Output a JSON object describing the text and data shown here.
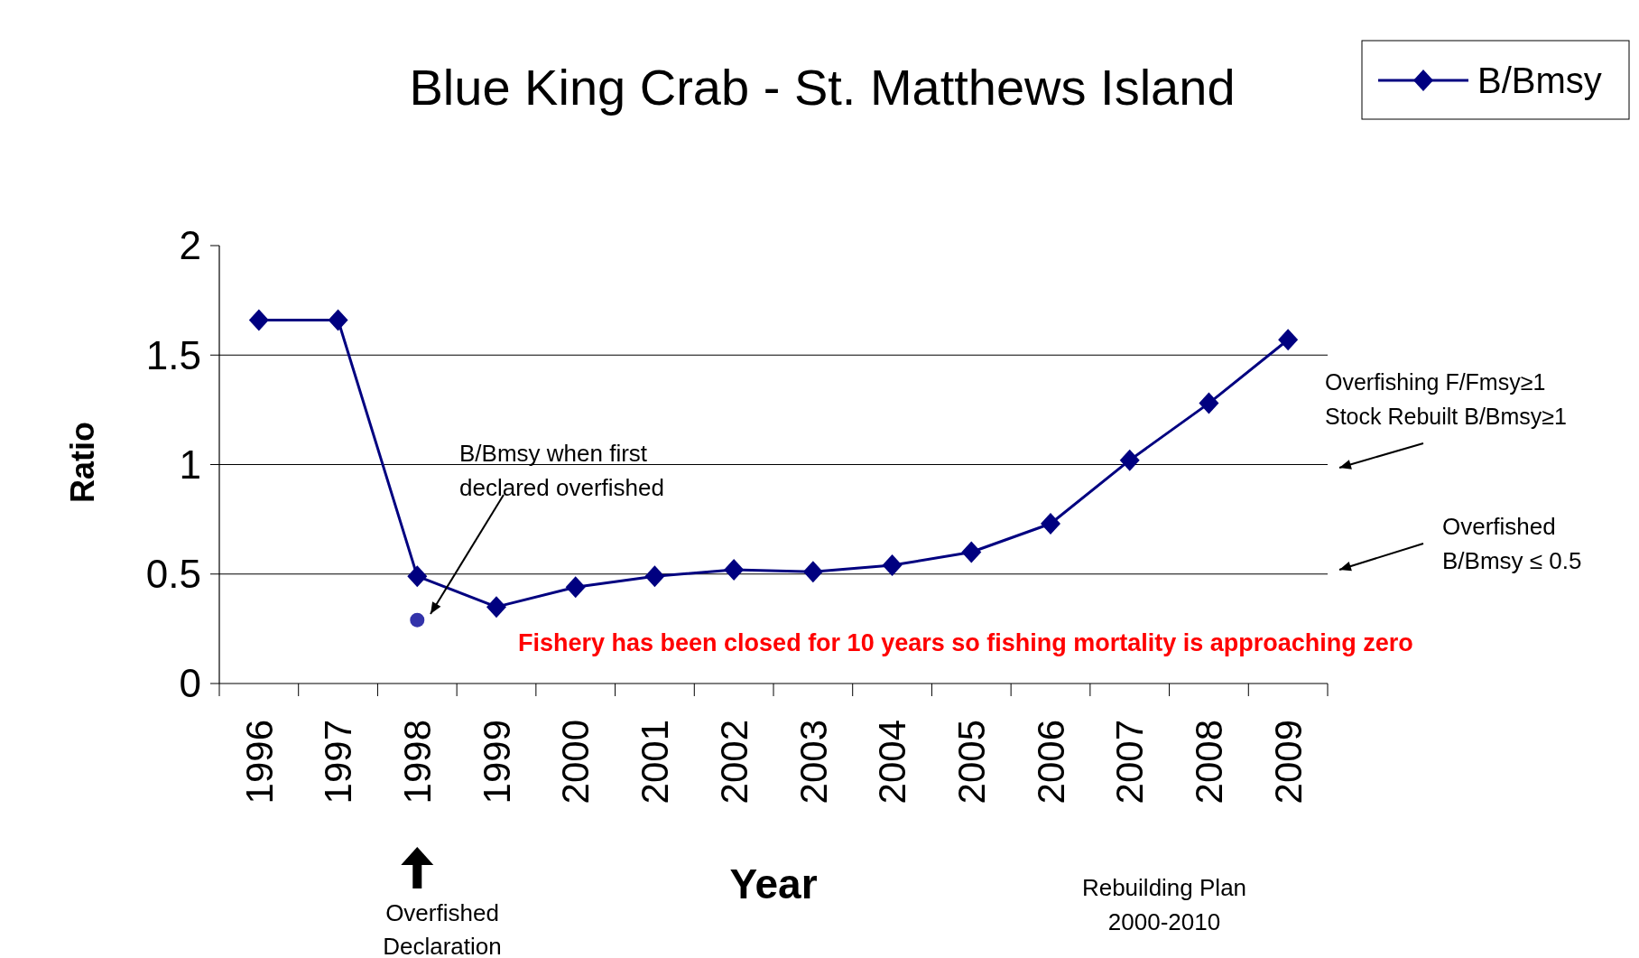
{
  "chart_data": {
    "type": "line",
    "title": "Blue King Crab - St. Matthews Island",
    "xlabel": "Year",
    "ylabel": "Ratio",
    "categories": [
      "1996",
      "1997",
      "1998",
      "1999",
      "2000",
      "2001",
      "2002",
      "2003",
      "2004",
      "2005",
      "2006",
      "2007",
      "2008",
      "2009"
    ],
    "series": [
      {
        "name": "B/Bmsy",
        "color": "#000080",
        "marker": "diamond",
        "values": [
          1.66,
          1.66,
          0.49,
          0.35,
          0.44,
          0.49,
          0.52,
          0.51,
          0.54,
          0.6,
          0.73,
          1.02,
          1.28,
          1.57
        ]
      },
      {
        "type": "scatter",
        "color": "#3333aa",
        "marker": "circle",
        "values": [
          null,
          null,
          0.29,
          null,
          null,
          null,
          null,
          null,
          null,
          null,
          null,
          null,
          null,
          null
        ]
      }
    ],
    "ylim": [
      0,
      2
    ],
    "yticks": [
      0,
      0.5,
      1,
      1.5,
      2
    ],
    "grid": "y",
    "legend": "top right",
    "annotations": [
      "B/Bmsy when first\ndeclared overfished",
      "Overfishing F/Fmsy≥1\nStock Rebuilt B/Bmsy≥1",
      "Overfished\nB/Bmsy ≤ 0.5",
      "Fishery has been closed for 10 years so fishing mortality is approaching zero",
      "Overfished\nDeclaration",
      "Rebuilding Plan\n2000-2010"
    ]
  }
}
